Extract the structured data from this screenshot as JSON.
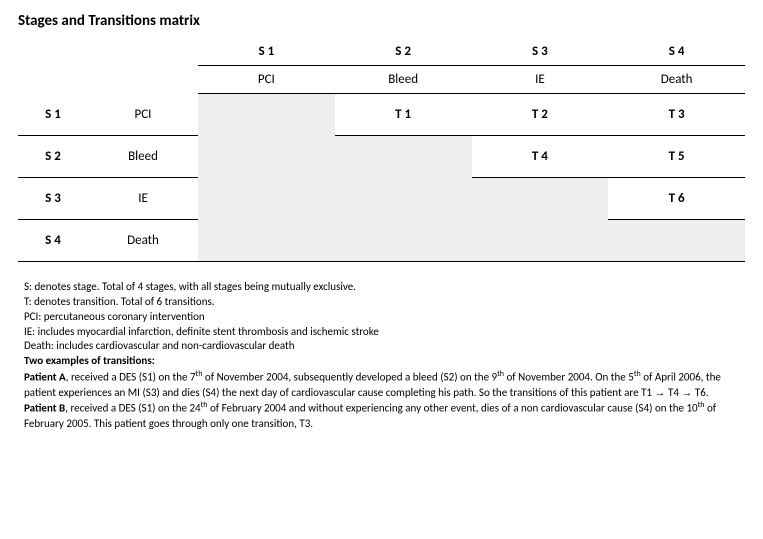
{
  "title": "Stages and Transitions matrix",
  "colors": {
    "background": "#ffffff",
    "shaded": "#eeeeee",
    "text": "#000000",
    "border": "#000000"
  },
  "stages": [
    {
      "code": "S 1",
      "label": "PCI"
    },
    {
      "code": "S 2",
      "label": "Bleed"
    },
    {
      "code": "S 3",
      "label": "IE"
    },
    {
      "code": "S 4",
      "label": "Death"
    }
  ],
  "matrix_rows": [
    {
      "code": "S 1",
      "label": "PCI",
      "cells": [
        {
          "text": "",
          "shaded": true,
          "noline": true
        },
        {
          "text": "T 1",
          "shaded": false
        },
        {
          "text": "T 2",
          "shaded": false
        },
        {
          "text": "T 3",
          "shaded": false
        }
      ]
    },
    {
      "code": "S 2",
      "label": "Bleed",
      "cells": [
        {
          "text": "",
          "shaded": true,
          "noline": true
        },
        {
          "text": "",
          "shaded": true,
          "noline": true
        },
        {
          "text": "T 4",
          "shaded": false
        },
        {
          "text": "T 5",
          "shaded": false
        }
      ]
    },
    {
      "code": "S 3",
      "label": "IE",
      "cells": [
        {
          "text": "",
          "shaded": true,
          "noline": true
        },
        {
          "text": "",
          "shaded": true,
          "noline": true
        },
        {
          "text": "",
          "shaded": true,
          "noline": true
        },
        {
          "text": "T 6",
          "shaded": false
        }
      ]
    },
    {
      "code": "S 4",
      "label": "Death",
      "cells": [
        {
          "text": "",
          "shaded": true,
          "noline": false
        },
        {
          "text": "",
          "shaded": true,
          "noline": false
        },
        {
          "text": "",
          "shaded": true,
          "noline": false
        },
        {
          "text": "",
          "shaded": true,
          "noline": false
        }
      ]
    }
  ],
  "legend": {
    "s": "S: denotes stage. Total of 4 stages, with all stages being mutually exclusive.",
    "t": "T: denotes transition. Total of 6 transitions.",
    "pci": "PCI: percutaneous coronary intervention",
    "ie": "IE:  includes myocardial infarction, definite stent thrombosis and ischemic stroke",
    "death": "Death: includes cardiovascular and non-cardiovascular death"
  },
  "examples_header": "Two examples of transitions:",
  "example_a": {
    "label": "Patient A",
    "part1": ", received a DES (S1) on the 7",
    "sup1": "th",
    "part2": " of November 2004, subsequently developed a bleed (S2) on the 9",
    "sup2": "th",
    "part3": " of November 2004. On the 5",
    "sup3": "th",
    "part4": " of April 2006, the patient experiences an MI (S3) and dies (S4) the next day of cardiovascular cause completing his path. So the transitions of this patient are T1 ",
    "arrow1": "→",
    "part5": " T4 ",
    "arrow2": "→",
    "part6": " T6."
  },
  "example_b": {
    "label": "Patient B",
    "part1": ", received a DES (S1) on the 24",
    "sup1": "th",
    "part2": " of February 2004 and without experiencing any other event, dies of  a non cardiovascular cause (S4) on the 10",
    "sup2": "th",
    "part3": " of February 2005. This patient goes through only one transition, T3."
  }
}
